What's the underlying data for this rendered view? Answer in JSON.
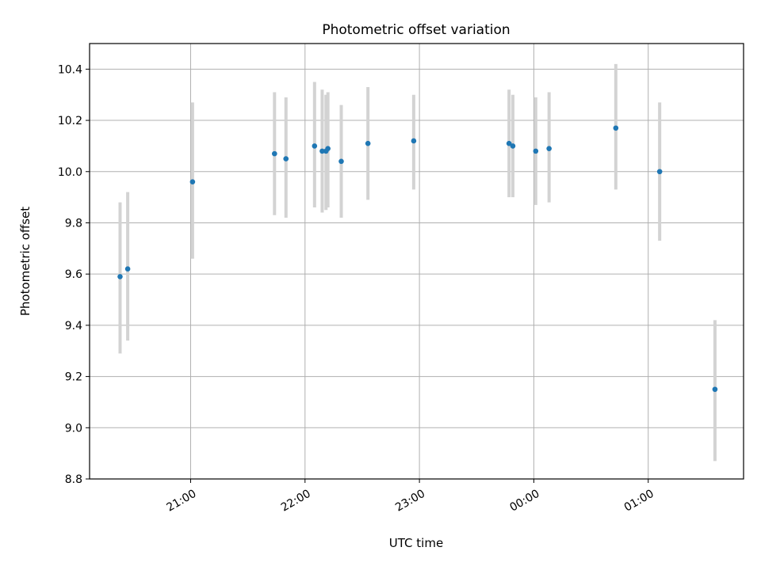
{
  "chart_data": {
    "type": "scatter",
    "title": "Photometric offset variation",
    "xlabel": "UTC time",
    "ylabel": "Photometric offset",
    "xlim": [
      "20:07",
      "25:50"
    ],
    "ylim": [
      8.8,
      10.5
    ],
    "x_ticks": [
      {
        "label": "21:00",
        "time": "21:00"
      },
      {
        "label": "22:00",
        "time": "22:00"
      },
      {
        "label": "23:00",
        "time": "23:00"
      },
      {
        "label": "00:00",
        "time": "24:00"
      },
      {
        "label": "01:00",
        "time": "25:00"
      }
    ],
    "y_ticks": [
      "8.8",
      "9.0",
      "9.2",
      "9.4",
      "9.6",
      "9.8",
      "10.0",
      "10.2",
      "10.4"
    ],
    "grid": true,
    "colors": {
      "point": "#1f77b4",
      "errorbar": "#d3d3d3",
      "grid": "#b0b0b0"
    },
    "series": [
      {
        "points": [
          {
            "time": "20:23",
            "y": 9.59,
            "low": 9.29,
            "high": 9.88
          },
          {
            "time": "20:27",
            "y": 9.62,
            "low": 9.34,
            "high": 9.92
          },
          {
            "time": "21:01",
            "y": 9.96,
            "low": 9.66,
            "high": 10.27
          },
          {
            "time": "21:44",
            "y": 10.07,
            "low": 9.83,
            "high": 10.31
          },
          {
            "time": "21:50",
            "y": 10.05,
            "low": 9.82,
            "high": 10.29
          },
          {
            "time": "22:05",
            "y": 10.1,
            "low": 9.86,
            "high": 10.35
          },
          {
            "time": "22:09",
            "y": 10.08,
            "low": 9.84,
            "high": 10.32
          },
          {
            "time": "22:11",
            "y": 10.08,
            "low": 9.85,
            "high": 10.3
          },
          {
            "time": "22:12",
            "y": 10.09,
            "low": 9.86,
            "high": 10.31
          },
          {
            "time": "22:19",
            "y": 10.04,
            "low": 9.82,
            "high": 10.26
          },
          {
            "time": "22:33",
            "y": 10.11,
            "low": 9.89,
            "high": 10.33
          },
          {
            "time": "22:57",
            "y": 10.12,
            "low": 9.93,
            "high": 10.3
          },
          {
            "time": "23:47",
            "y": 10.11,
            "low": 9.9,
            "high": 10.32
          },
          {
            "time": "23:49",
            "y": 10.1,
            "low": 9.9,
            "high": 10.3
          },
          {
            "time": "24:01",
            "y": 10.08,
            "low": 9.87,
            "high": 10.29
          },
          {
            "time": "24:08",
            "y": 10.09,
            "low": 9.88,
            "high": 10.31
          },
          {
            "time": "24:43",
            "y": 10.17,
            "low": 9.93,
            "high": 10.42
          },
          {
            "time": "25:06",
            "y": 10.0,
            "low": 9.73,
            "high": 10.27
          },
          {
            "time": "25:35",
            "y": 9.15,
            "low": 8.87,
            "high": 9.42
          }
        ]
      }
    ]
  }
}
